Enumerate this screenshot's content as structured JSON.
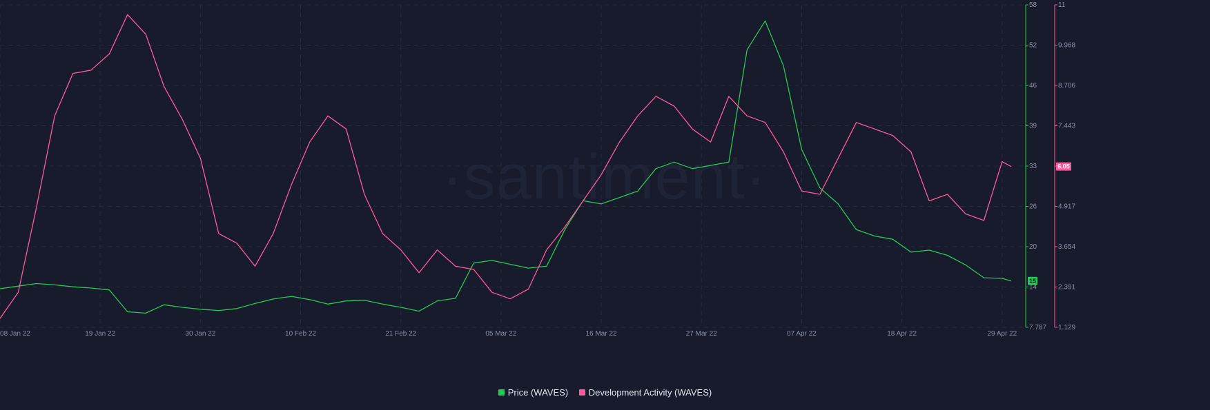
{
  "watermark": "·santiment·",
  "legend": {
    "price_label": "Price (WAVES)",
    "dev_label": "Development Activity (WAVES)"
  },
  "colors": {
    "background": "#181b2b",
    "price": "#26c953",
    "dev": "#ff5b9b",
    "grid": "#262a3c"
  },
  "chart_data": {
    "type": "line",
    "x_labels": [
      "08 Jan 22",
      "19 Jan 22",
      "30 Jan 22",
      "10 Feb 22",
      "21 Feb 22",
      "05 Mar 22",
      "16 Mar 22",
      "27 Mar 22",
      "07 Apr 22",
      "18 Apr 22",
      "29 Apr 22"
    ],
    "price_axis": {
      "ticks": [
        "58",
        "52",
        "46",
        "39",
        "33",
        "26",
        "20",
        "14",
        "7.787"
      ],
      "range": [
        7.787,
        58
      ]
    },
    "dev_axis": {
      "ticks": [
        "11",
        "9.968",
        "8.706",
        "7.443",
        "6.18",
        "4.917",
        "3.654",
        "2.391",
        "1.129"
      ],
      "range": [
        1.129,
        11
      ]
    },
    "last_values": {
      "price": "15",
      "dev": "6.05"
    },
    "x": [
      "2022-01-08",
      "2022-01-10",
      "2022-01-12",
      "2022-01-14",
      "2022-01-16",
      "2022-01-18",
      "2022-01-20",
      "2022-01-22",
      "2022-01-24",
      "2022-01-26",
      "2022-01-28",
      "2022-01-30",
      "2022-02-01",
      "2022-02-03",
      "2022-02-05",
      "2022-02-07",
      "2022-02-09",
      "2022-02-11",
      "2022-02-13",
      "2022-02-15",
      "2022-02-17",
      "2022-02-19",
      "2022-02-21",
      "2022-02-23",
      "2022-02-25",
      "2022-02-27",
      "2022-03-01",
      "2022-03-03",
      "2022-03-05",
      "2022-03-07",
      "2022-03-09",
      "2022-03-11",
      "2022-03-13",
      "2022-03-15",
      "2022-03-17",
      "2022-03-19",
      "2022-03-21",
      "2022-03-23",
      "2022-03-25",
      "2022-03-27",
      "2022-03-29",
      "2022-03-31",
      "2022-04-02",
      "2022-04-04",
      "2022-04-06",
      "2022-04-08",
      "2022-04-10",
      "2022-04-12",
      "2022-04-14",
      "2022-04-16",
      "2022-04-18",
      "2022-04-20",
      "2022-04-22",
      "2022-04-24",
      "2022-04-26",
      "2022-04-28",
      "2022-04-29"
    ],
    "series": [
      {
        "name": "Price (WAVES)",
        "axis": "left",
        "values": [
          13.8,
          14.2,
          14.6,
          14.4,
          14.1,
          13.9,
          13.6,
          10.2,
          10.0,
          11.3,
          10.9,
          10.6,
          10.4,
          10.7,
          11.5,
          12.2,
          12.6,
          12.1,
          11.4,
          11.9,
          12.0,
          11.4,
          10.9,
          10.3,
          11.9,
          12.3,
          17.8,
          18.2,
          17.6,
          17.0,
          17.3,
          23.0,
          27.5,
          27.0,
          28.0,
          29.0,
          32.5,
          33.5,
          32.5,
          33.0,
          33.5,
          51.0,
          55.5,
          48.5,
          35.5,
          29.5,
          27.0,
          23.0,
          22.0,
          21.5,
          19.5,
          19.8,
          19.0,
          17.5,
          15.5,
          15.4,
          15.0
        ]
      },
      {
        "name": "Development Activity (WAVES)",
        "axis": "right",
        "values": [
          1.4,
          2.2,
          4.8,
          7.6,
          8.9,
          9.0,
          9.5,
          10.7,
          10.1,
          8.5,
          7.5,
          6.3,
          4.0,
          3.7,
          3.0,
          4.0,
          5.5,
          6.8,
          7.6,
          7.2,
          5.2,
          4.0,
          3.5,
          2.8,
          3.5,
          3.0,
          2.9,
          2.2,
          2.0,
          2.3,
          3.5,
          4.2,
          5.0,
          5.8,
          6.8,
          7.6,
          8.2,
          7.9,
          7.2,
          6.8,
          8.2,
          7.6,
          7.4,
          6.5,
          5.3,
          5.2,
          6.3,
          7.4,
          7.2,
          7.0,
          6.5,
          5.0,
          5.2,
          4.6,
          4.4,
          6.2,
          6.05
        ]
      }
    ]
  }
}
